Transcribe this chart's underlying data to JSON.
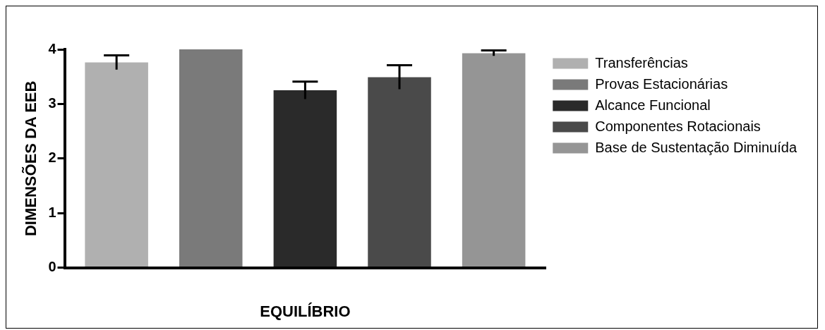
{
  "chart_data": {
    "type": "bar",
    "xlabel": "EQUILÍBRIO",
    "ylabel": "DIMENSÕES DA EEB",
    "categories": [
      null
    ],
    "series": [
      {
        "name": "Transferências",
        "color": "#b0b0b0",
        "values": [
          3.76
        ],
        "errors": [
          0.13
        ]
      },
      {
        "name": "Provas Estacionárias",
        "color": "#7a7a7a",
        "values": [
          4.0
        ],
        "errors": [
          null
        ]
      },
      {
        "name": "Alcance Funcional",
        "color": "#2a2a2a",
        "values": [
          3.25
        ],
        "errors": [
          0.16
        ]
      },
      {
        "name": "Componentes Rotacionais",
        "color": "#4a4a4a",
        "values": [
          3.49
        ],
        "errors": [
          0.22
        ]
      },
      {
        "name": "Base de Sustentação Diminuída",
        "color": "#959595",
        "values": [
          3.93
        ],
        "errors": [
          0.05
        ]
      }
    ],
    "ylim": [
      0,
      4
    ],
    "yticks": [
      0,
      1,
      2,
      3,
      4
    ],
    "grid": false,
    "legend": "right"
  }
}
